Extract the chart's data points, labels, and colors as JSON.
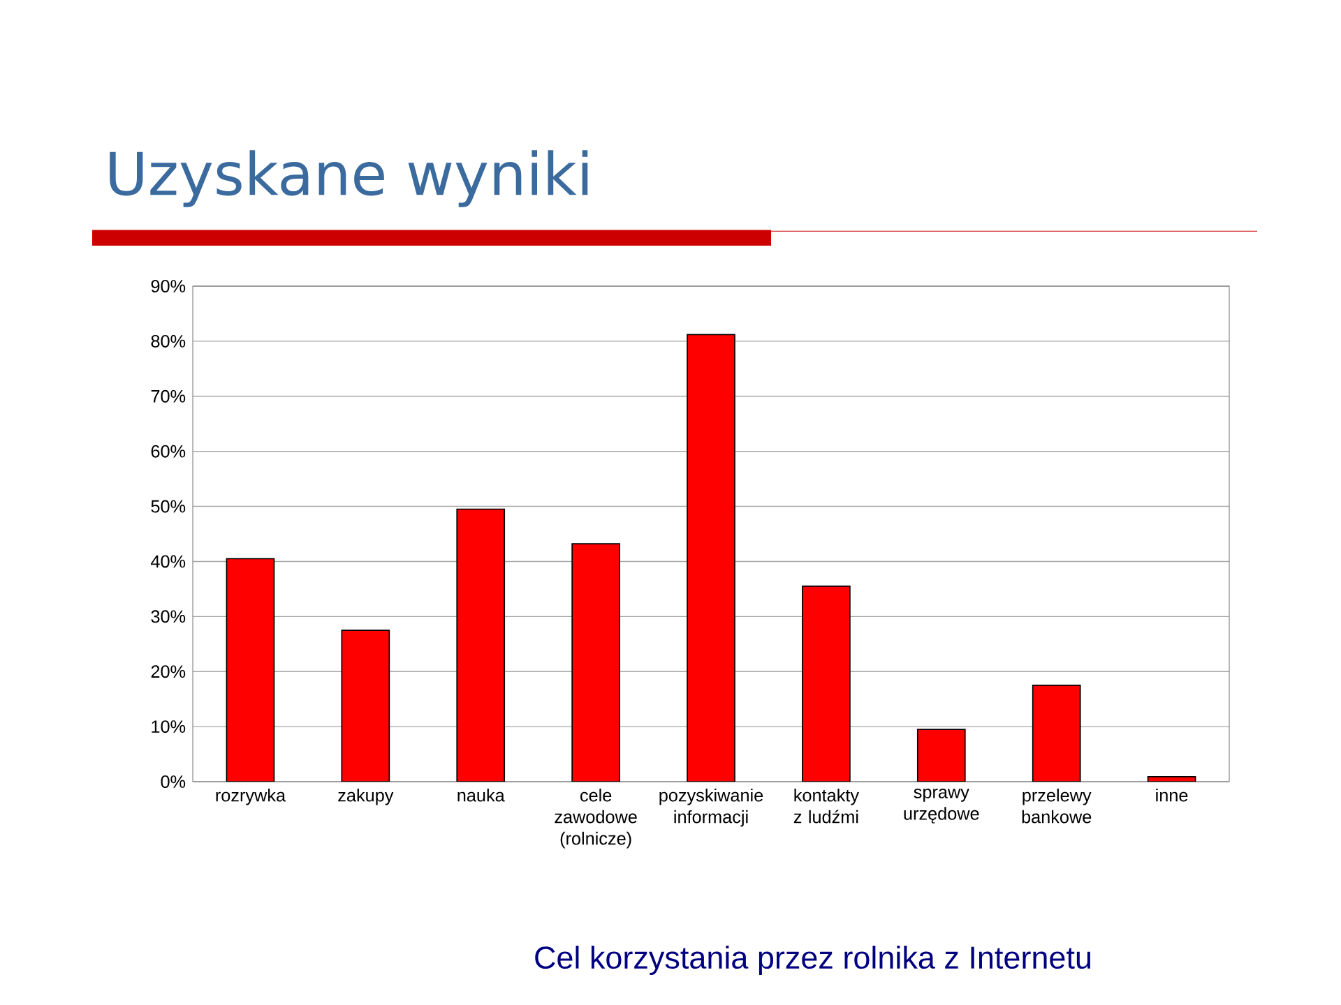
{
  "chart_data": {
    "type": "bar",
    "title": "Uzyskane wyniki",
    "categories": [
      "rozrywka",
      "zakupy",
      "nauka",
      "cele zawodowe (rolnicze)",
      "pozyskiwanie informacji",
      "kontakty z ludźmi",
      "sprawy urzędowe",
      "przelewy bankowe",
      "inne"
    ],
    "values": [
      40.5,
      27.5,
      49.5,
      43.2,
      81.2,
      35.5,
      9.5,
      17.5,
      0.9
    ],
    "color": "#ff0000",
    "ylim": [
      0,
      90
    ],
    "yticks": [
      {
        "value": 0,
        "label": "0%"
      },
      {
        "value": 10,
        "label": "10%"
      },
      {
        "value": 20,
        "label": "20%"
      },
      {
        "value": 30,
        "label": "30%"
      },
      {
        "value": 40,
        "label": "40%"
      },
      {
        "value": 50,
        "label": "50%"
      },
      {
        "value": 60,
        "label": "60%"
      },
      {
        "value": 70,
        "label": "70%"
      },
      {
        "value": 80,
        "label": "80%"
      },
      {
        "value": 90,
        "label": "90%"
      }
    ],
    "grid": "y",
    "annotations": [
      "Cel korzystania przez rolnika z Internetu"
    ]
  }
}
